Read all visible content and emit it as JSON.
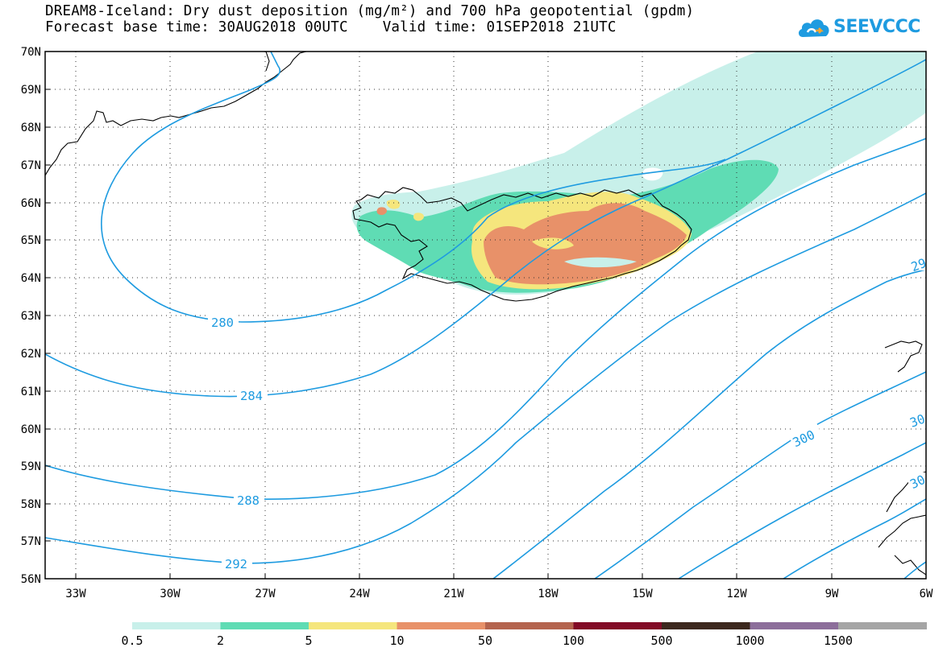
{
  "header": {
    "title_line1": "DREAM8-Iceland: Dry dust deposition (mg/m²) and 700 hPa geopotential (gpdm)",
    "title_line2": "Forecast base time: 30AUG2018 00UTC    Valid time: 01SEP2018 21UTC"
  },
  "logo": {
    "text": "SEEVCCC",
    "color": "#1E9BE0"
  },
  "map": {
    "lat_labels": [
      "70N",
      "69N",
      "68N",
      "67N",
      "66N",
      "65N",
      "64N",
      "63N",
      "62N",
      "61N",
      "60N",
      "59N",
      "58N",
      "57N",
      "56N"
    ],
    "lon_labels": [
      "33W",
      "30W",
      "27W",
      "24W",
      "21W",
      "18W",
      "15W",
      "12W",
      "9W",
      "6W"
    ],
    "lat_range": [
      56,
      70
    ],
    "lon_range": [
      -34.5,
      -6
    ],
    "grid": "dotted",
    "contour_color": "#1E9BE0",
    "contour_labels": [
      "280",
      "284",
      "288",
      "292",
      "300",
      "29",
      "30",
      "30"
    ]
  },
  "legend": {
    "labels": [
      "0.5",
      "2",
      "5",
      "10",
      "50",
      "100",
      "500",
      "1000",
      "1500"
    ],
    "colors": [
      "#C8F0EA",
      "#5FDCB4",
      "#F5E67D",
      "#E89169",
      "#B4644E",
      "#820A26",
      "#3C281E",
      "#8C6E9B",
      "#A5A5A5"
    ]
  }
}
